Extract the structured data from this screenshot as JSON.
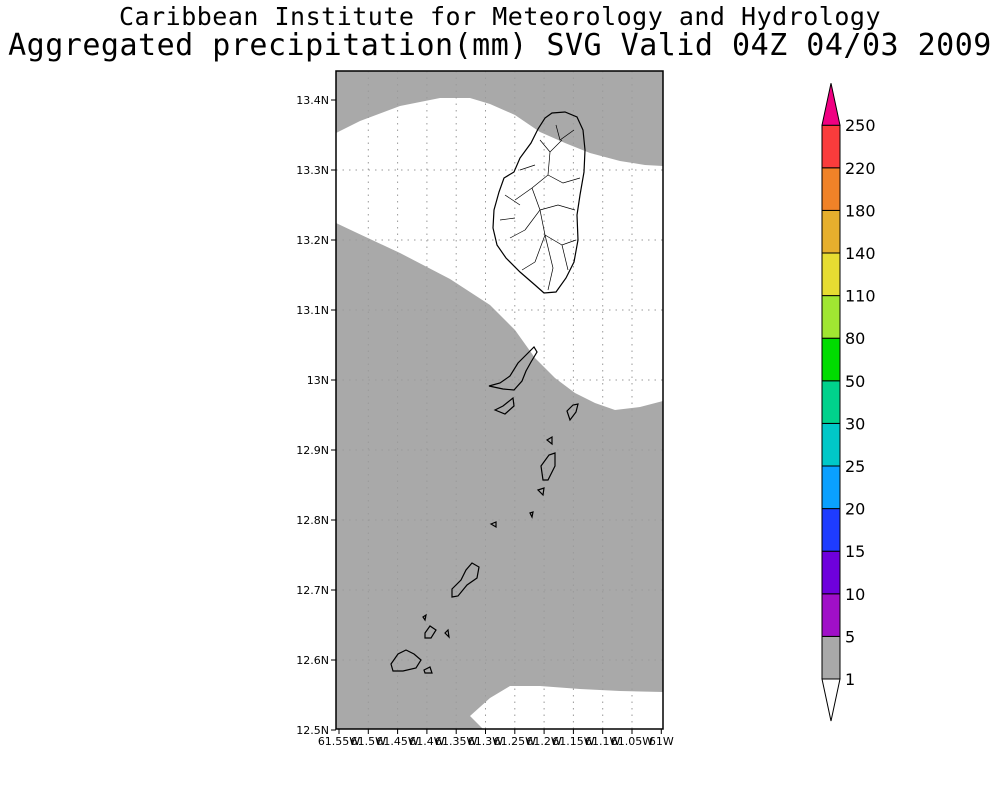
{
  "header": {
    "title": "Caribbean Institute for Meteorology and Hydrology",
    "subtitle": "Aggregated precipitation(mm) SVG Valid 04Z 04/03 2009"
  },
  "map": {
    "y_ticks": [
      "13.4N",
      "13.3N",
      "13.2N",
      "13.1N",
      "13N",
      "12.9N",
      "12.8N",
      "12.7N",
      "12.6N",
      "12.5N"
    ],
    "x_ticks": [
      "61.55W",
      "61.5W",
      "61.45W",
      "61.4W",
      "61.35W",
      "61.3W",
      "61.25W",
      "61.2W",
      "61.15W",
      "61.1W",
      "61.05W",
      "61W"
    ],
    "precip_fill_color": "#a9a9a9",
    "no_precip_color": "#ffffff",
    "coast_color": "#000000"
  },
  "colorbar": {
    "levels": [
      "1",
      "5",
      "10",
      "15",
      "20",
      "25",
      "30",
      "50",
      "80",
      "110",
      "140",
      "180",
      "220",
      "250"
    ],
    "colors": [
      "#a9a9a9",
      "#a00fc8",
      "#6e00dc",
      "#1e3cff",
      "#0aa0ff",
      "#00c8c8",
      "#00d28c",
      "#00dc00",
      "#a0e632",
      "#e6dc32",
      "#e6af2d",
      "#f08228",
      "#fa3c3c",
      "#f00082"
    ],
    "below_color": "#ffffff"
  }
}
